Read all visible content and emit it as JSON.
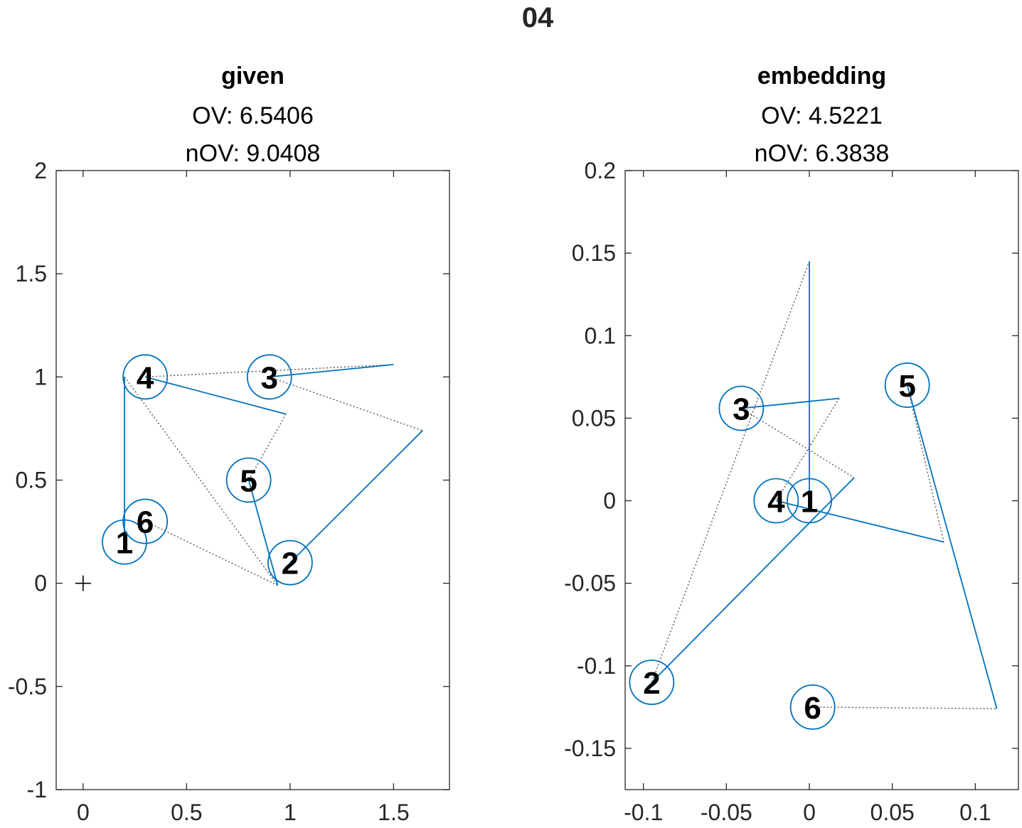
{
  "figure": {
    "title": "04"
  },
  "chart_data": [
    {
      "type": "scatter",
      "title": "given",
      "subtitle_lines": [
        "OV: 6.5406",
        "nOV: 9.0408"
      ],
      "xlabel": "",
      "ylabel": "",
      "xlim": [
        -0.13,
        1.77
      ],
      "ylim": [
        -1,
        2
      ],
      "xticks": [
        0,
        0.5,
        1,
        1.5
      ],
      "xtick_labels": [
        "0",
        "0.5",
        "1",
        "1.5"
      ],
      "yticks": [
        -1,
        -0.5,
        0,
        0.5,
        1,
        1.5,
        2
      ],
      "ytick_labels": [
        "-1",
        "-0.5",
        "0",
        "0.5",
        "1",
        "1.5",
        "2"
      ],
      "grid": false,
      "origin_marker": {
        "x": 0,
        "y": 0,
        "symbol": "+"
      },
      "points": [
        {
          "label": "1",
          "x": 0.2,
          "y": 0.2
        },
        {
          "label": "2",
          "x": 1.0,
          "y": 0.1
        },
        {
          "label": "3",
          "x": 0.9,
          "y": 1.0
        },
        {
          "label": "4",
          "x": 0.3,
          "y": 1.0
        },
        {
          "label": "5",
          "x": 0.8,
          "y": 0.5
        },
        {
          "label": "6",
          "x": 0.3,
          "y": 0.3
        }
      ],
      "solid_segments": [
        {
          "from": [
            0.2,
            0.2
          ],
          "to": [
            0.2,
            1.0
          ]
        },
        {
          "from": [
            1.0,
            0.1
          ],
          "to": [
            1.64,
            0.74
          ]
        },
        {
          "from": [
            0.9,
            1.0
          ],
          "to": [
            1.5,
            1.06
          ]
        },
        {
          "from": [
            0.3,
            1.0
          ],
          "to": [
            0.98,
            0.82
          ]
        },
        {
          "from": [
            0.8,
            0.5
          ],
          "to": [
            0.94,
            -0.01
          ]
        },
        {
          "from": [
            0.3,
            0.3
          ],
          "to": [
            0.28,
            0.28
          ]
        }
      ],
      "dotted_segments": [
        {
          "from": [
            0.2,
            1.0
          ],
          "to": [
            0.94,
            -0.01
          ]
        },
        {
          "from": [
            0.94,
            -0.01
          ],
          "to": [
            0.3,
            0.3
          ]
        },
        {
          "from": [
            0.3,
            1.0
          ],
          "to": [
            1.5,
            1.06
          ]
        },
        {
          "from": [
            0.9,
            1.0
          ],
          "to": [
            1.64,
            0.74
          ]
        },
        {
          "from": [
            0.8,
            0.5
          ],
          "to": [
            0.98,
            0.82
          ]
        }
      ],
      "colors": {
        "marker": "#0072BD",
        "dotted": "#555555",
        "label": "#000000"
      }
    },
    {
      "type": "scatter",
      "title": "embedding",
      "subtitle_lines": [
        "OV: 4.5221",
        "nOV: 6.3838"
      ],
      "xlabel": "",
      "ylabel": "",
      "xlim": [
        -0.111,
        0.126
      ],
      "ylim": [
        -0.175,
        0.2
      ],
      "xticks": [
        -0.1,
        -0.05,
        0,
        0.05,
        0.1
      ],
      "xtick_labels": [
        "-0.1",
        "-0.05",
        "0",
        "0.05",
        "0.1"
      ],
      "yticks": [
        -0.15,
        -0.1,
        -0.05,
        0,
        0.05,
        0.1,
        0.15,
        0.2
      ],
      "ytick_labels": [
        "-0.15",
        "-0.1",
        "-0.05",
        "0",
        "0.05",
        "0.1",
        "0.15",
        "0.2"
      ],
      "grid": false,
      "points": [
        {
          "label": "1",
          "x": 0.0,
          "y": 0.0
        },
        {
          "label": "2",
          "x": -0.095,
          "y": -0.11
        },
        {
          "label": "3",
          "x": -0.041,
          "y": 0.056
        },
        {
          "label": "4",
          "x": -0.02,
          "y": 0.0
        },
        {
          "label": "5",
          "x": 0.059,
          "y": 0.07
        },
        {
          "label": "6",
          "x": 0.002,
          "y": -0.125
        }
      ],
      "solid_segments": [
        {
          "from": [
            0.0,
            0.0
          ],
          "to": [
            0.0,
            0.145
          ]
        },
        {
          "from": [
            -0.095,
            -0.11
          ],
          "to": [
            0.027,
            0.014
          ]
        },
        {
          "from": [
            -0.041,
            0.056
          ],
          "to": [
            0.018,
            0.062
          ]
        },
        {
          "from": [
            -0.02,
            0.0
          ],
          "to": [
            0.081,
            -0.025
          ]
        },
        {
          "from": [
            0.059,
            0.07
          ],
          "to": [
            0.113,
            -0.126
          ]
        },
        {
          "from": [
            0.002,
            -0.125
          ],
          "to": [
            0.0,
            -0.125
          ]
        }
      ],
      "dotted_segments": [
        {
          "from": [
            0.0,
            0.145
          ],
          "to": [
            -0.095,
            -0.11
          ]
        },
        {
          "from": [
            -0.041,
            0.056
          ],
          "to": [
            0.027,
            0.014
          ]
        },
        {
          "from": [
            0.018,
            0.062
          ],
          "to": [
            -0.02,
            0.0
          ]
        },
        {
          "from": [
            0.059,
            0.07
          ],
          "to": [
            0.081,
            -0.025
          ]
        },
        {
          "from": [
            0.002,
            -0.125
          ],
          "to": [
            0.113,
            -0.126
          ]
        }
      ],
      "colors": {
        "marker": "#0072BD",
        "dotted": "#555555",
        "label": "#000000"
      }
    }
  ]
}
